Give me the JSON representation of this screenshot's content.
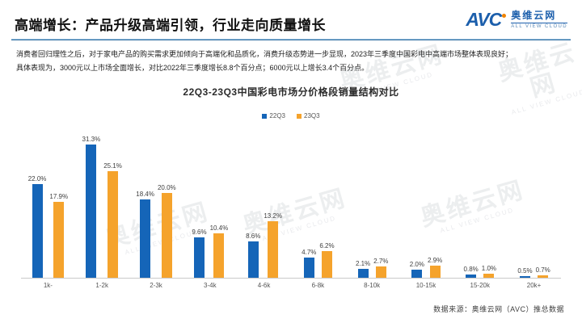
{
  "page": {
    "title": "高端增长：产品升级高端引领，行业走向质量增长"
  },
  "logo": {
    "abbr": "AVC",
    "name": "奥维云网",
    "tagline": "ALL VIEW CLOUD"
  },
  "intro": {
    "line1": "消费者回归理性之后，对于家电产品的购买需求更加倾向于高端化和品质化，消费升级态势进一步显现，2023年三季度中国彩电中高端市场整体表现良好；",
    "line2": "具体表现为，3000元以上市场全面增长，对比2022年三季度增长8.8个百分点；6000元以上增长3.4个百分点。"
  },
  "chart_data": {
    "type": "bar",
    "title": "22Q3-23Q3中国彩电市场分价格段销量结构对比",
    "categories": [
      "1k-",
      "1-2k",
      "2-3k",
      "3-4k",
      "4-6k",
      "6-8k",
      "8-10k",
      "10-15k",
      "15-20k",
      "20k+"
    ],
    "series": [
      {
        "name": "22Q3",
        "color": "#1565b8",
        "values": [
          22.0,
          31.3,
          18.4,
          9.6,
          8.6,
          4.7,
          2.1,
          2.0,
          0.8,
          0.5
        ]
      },
      {
        "name": "23Q3",
        "color": "#f5a32c",
        "values": [
          17.9,
          25.1,
          20.0,
          10.4,
          13.2,
          6.2,
          2.7,
          2.9,
          1.0,
          0.7
        ]
      }
    ],
    "value_suffix": "%",
    "xlabel": "",
    "ylabel": "",
    "ylim": [
      0,
      35
    ],
    "grid": false,
    "legend_position": "top-center"
  },
  "footer": {
    "source": "数据来源：奥维云网（AVC）推总数据"
  },
  "watermark": {
    "text": "奥维云网",
    "subtext": "ALL VIEW CLOUD"
  },
  "colors": {
    "bar_blue": "#1565b8",
    "bar_orange": "#f5a32c",
    "header_rule": "#2a6a9e",
    "logo_blue": "#1c5fac",
    "logo_orange": "#f08300"
  }
}
